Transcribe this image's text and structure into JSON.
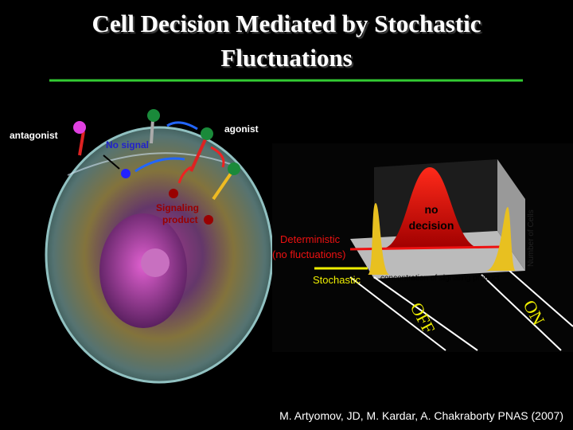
{
  "slide": {
    "title": [
      "Cell Decision Mediated by Stochastic",
      "Fluctuations"
    ],
    "cell_diagram": {
      "antagonist": "antagonist",
      "agonist": "agonist",
      "no_signal": "No signal",
      "signaling_product": [
        "Signaling",
        "product"
      ]
    },
    "plot": {
      "peak_label": [
        "no",
        "decision"
      ],
      "deterministic": "Deterministic",
      "deterministic_note": "(no fluctuations)",
      "stochastic": "Stochastic",
      "x_axis": "concentration of signaling product",
      "y_axis": "Number of Cells",
      "off": "OFF",
      "on": "ON"
    },
    "citation": "M. Artyomov, JD, M. Kardar, A. Chakraborty PNAS (2007)"
  }
}
